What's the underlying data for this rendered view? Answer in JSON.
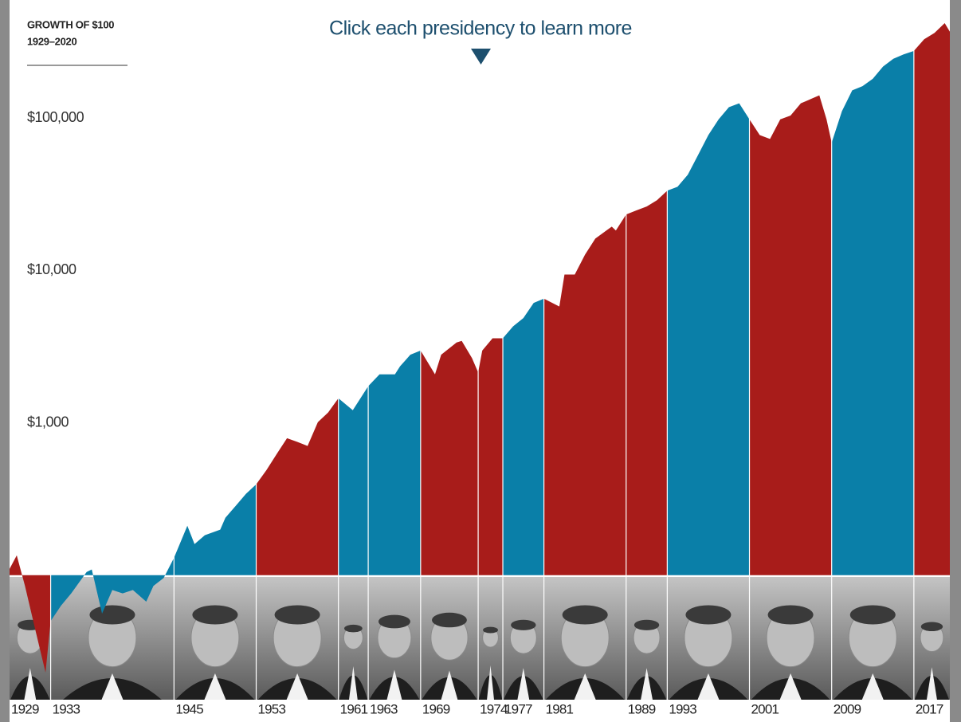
{
  "chart_data": {
    "type": "area",
    "title": "GROWTH OF $100",
    "subtitle": "1929–2020",
    "annotation": "Click each presidency to learn more",
    "log_scale": true,
    "baseline": 100,
    "xlim": [
      1929,
      2020.5
    ],
    "ylim": [
      10,
      1000000
    ],
    "yticks": [
      {
        "value": 1000,
        "label": "$1,000"
      },
      {
        "value": 10000,
        "label": "$10,000"
      },
      {
        "value": 100000,
        "label": "$100,000"
      }
    ],
    "period_starts": [
      1929,
      1933,
      1945,
      1953,
      1961,
      {
        "value": 1963.9,
        "label": "1963"
      },
      1969,
      {
        "value": 1974.6,
        "label": "1974"
      },
      1977,
      1981,
      1989,
      1993,
      2001,
      2009,
      2017
    ],
    "period_colors": [
      "#a81c1a",
      "#0a7fa8",
      "#0a7fa8",
      "#a81c1a",
      "#0a7fa8",
      "#0a7fa8",
      "#a81c1a",
      "#a81c1a",
      "#0a7fa8",
      "#a81c1a",
      "#a81c1a",
      "#0a7fa8",
      "#a81c1a",
      "#0a7fa8",
      "#a81c1a"
    ],
    "x": [
      1929,
      1929.7,
      1930.5,
      1931.5,
      1932.5,
      1933,
      1934,
      1935,
      1936.5,
      1937,
      1938,
      1939,
      1940,
      1941,
      1942.3,
      1943,
      1944,
      1945,
      1946.3,
      1947,
      1948,
      1949.5,
      1950,
      1951,
      1952,
      1953,
      1954,
      1955,
      1956,
      1957,
      1958,
      1959,
      1960,
      1961,
      1962.4,
      1963.9,
      1965,
      1966.5,
      1967,
      1968,
      1969,
      1970.4,
      1971,
      1972.5,
      1973,
      1974,
      1974.6,
      1975,
      1976,
      1977,
      1978,
      1979,
      1980,
      1981,
      1982.5,
      1983,
      1984,
      1985,
      1986,
      1987.6,
      1988,
      1989,
      1990,
      1991,
      1992,
      1993,
      1994,
      1995,
      1996,
      1997,
      1998,
      1999,
      2000,
      2001,
      2002,
      2003,
      2004,
      2005,
      2006,
      2007.8,
      2008.5,
      2009,
      2010,
      2011,
      2012,
      2013,
      2014,
      2015,
      2016,
      2017,
      2018,
      2019,
      2020,
      2020.5
    ],
    "values": [
      110,
      135,
      85,
      44,
      23,
      50,
      63,
      76,
      105,
      109,
      56,
      80,
      76,
      80,
      67,
      85,
      96,
      130,
      211,
      160,
      183,
      199,
      238,
      285,
      342,
      395,
      490,
      625,
      793,
      750,
      705,
      1010,
      1170,
      1450,
      1210,
      1740,
      2080,
      2080,
      2350,
      2800,
      2980,
      2080,
      2800,
      3370,
      3450,
      2660,
      2140,
      2980,
      3590,
      3590,
      4300,
      4870,
      6120,
      6530,
      5800,
      9400,
      9400,
      12700,
      16200,
      19400,
      18300,
      23300,
      24800,
      26300,
      28900,
      33400,
      35400,
      42500,
      57300,
      77400,
      98200,
      118000,
      125000,
      98200,
      77400,
      73000,
      98200,
      104000,
      125000,
      141000,
      98200,
      69000,
      111000,
      152000,
      162000,
      181000,
      218000,
      245000,
      262000,
      276000,
      329000,
      362000,
      420000,
      369000
    ]
  }
}
